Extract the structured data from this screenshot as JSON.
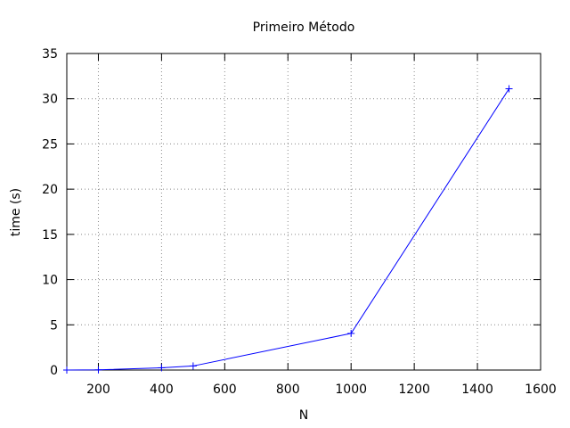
{
  "chart_data": {
    "type": "line",
    "title": "Primeiro Método",
    "xlabel": "N",
    "ylabel": "time (s)",
    "xlim": [
      100,
      1600
    ],
    "ylim": [
      0,
      35
    ],
    "xticks": [
      200,
      400,
      600,
      800,
      1000,
      1200,
      1400,
      1600
    ],
    "yticks": [
      0,
      5,
      10,
      15,
      20,
      25,
      30,
      35
    ],
    "grid": true,
    "series": [
      {
        "color": "#0000ff",
        "marker": "plus",
        "x": [
          100,
          200,
          400,
          500,
          1000,
          1500
        ],
        "y": [
          0.0,
          0.02,
          0.25,
          0.45,
          4.05,
          31.1
        ]
      }
    ]
  }
}
